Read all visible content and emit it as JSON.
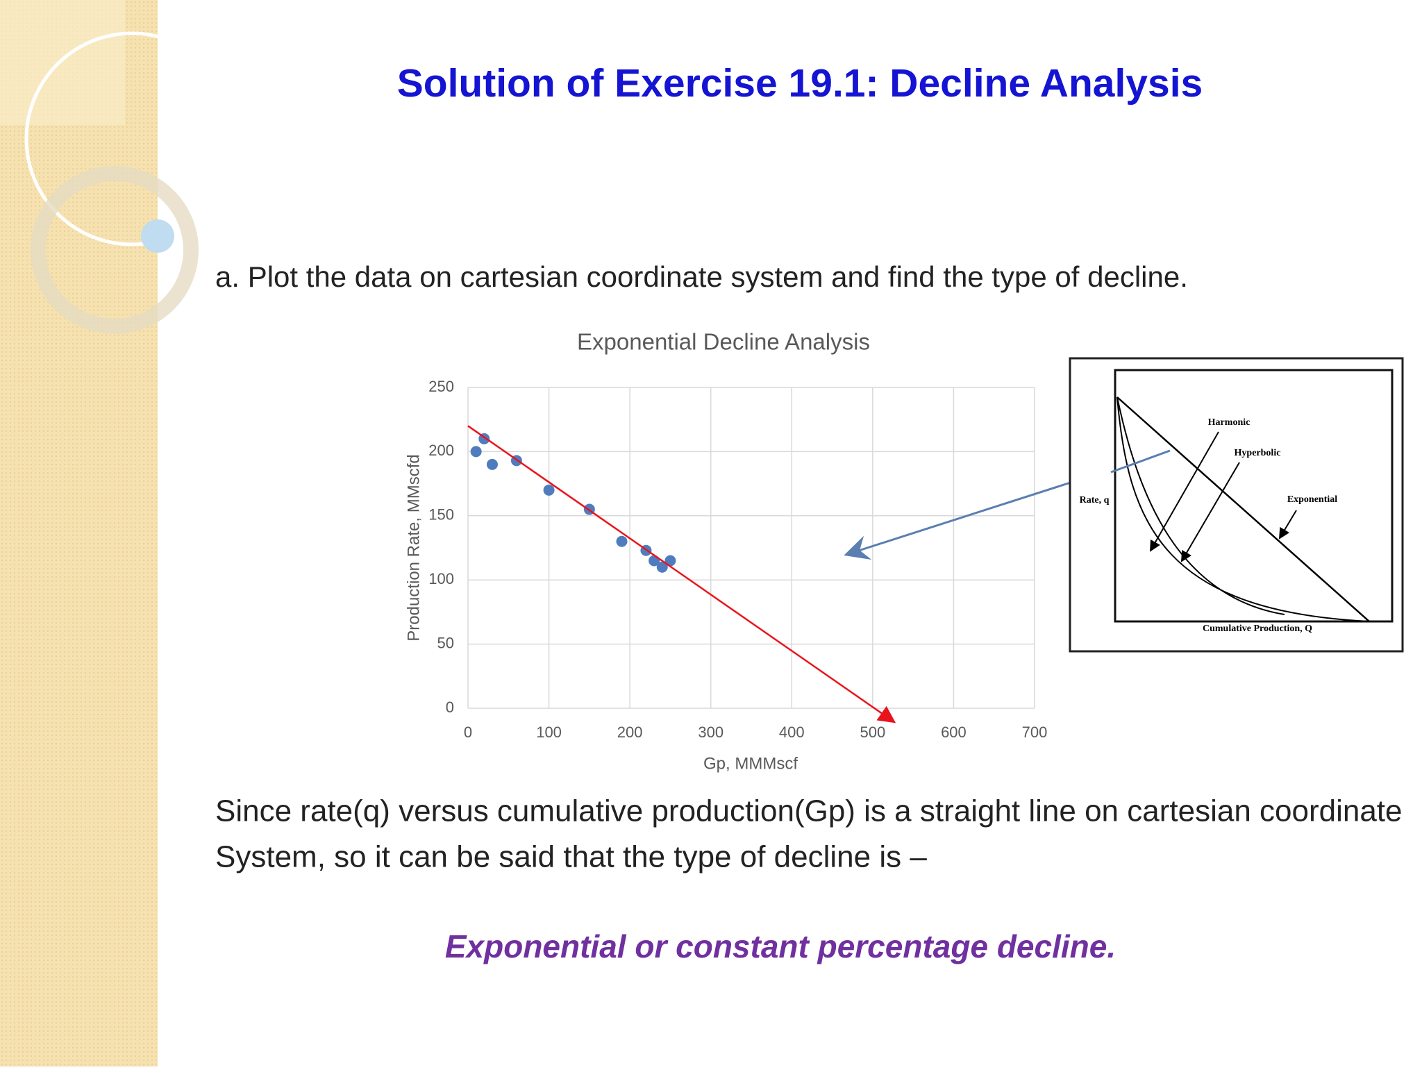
{
  "title": "Solution of Exercise 19.1: Decline Analysis",
  "question": "a. Plot the data on cartesian coordinate system and find the type of decline.",
  "chart_data": {
    "type": "scatter",
    "title": "Exponential Decline Analysis",
    "x_label": "Gp, MMMscf",
    "y_label": "Production Rate, MMscfd",
    "x": [
      10,
      20,
      30,
      60,
      100,
      150,
      190,
      220,
      230,
      240,
      250
    ],
    "values": [
      200,
      210,
      190,
      193,
      170,
      155,
      130,
      123,
      115,
      110,
      115
    ],
    "color": "#4f7cbf",
    "trend_line": {
      "x": [
        0,
        525
      ],
      "values": [
        220,
        -10
      ],
      "color": "#e8141c"
    },
    "xlim": [
      0,
      700
    ],
    "ylim": [
      0,
      250
    ],
    "xticks": [
      0,
      100,
      200,
      300,
      400,
      500,
      600,
      700
    ],
    "yticks": [
      0,
      50,
      100,
      150,
      200,
      250
    ],
    "grid": true
  },
  "inset": {
    "harmonic": "Harmonic",
    "hyperbolic": "Hyperbolic",
    "exponential": "Exponential",
    "y_label": "Rate, q",
    "x_label": "Cumulative Production, Q"
  },
  "conclusion": [
    "Since rate(q) versus cumulative production(Gp) is a straight line on cartesian coordinate",
    "System, so it can be said that the type of decline is –"
  ],
  "answer": "Exponential or constant percentage decline."
}
